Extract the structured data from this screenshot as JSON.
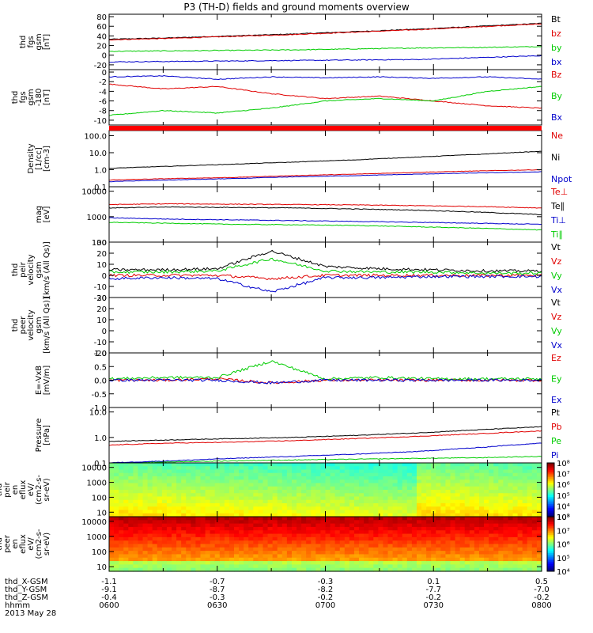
{
  "title": "P3 (TH-D) fields and ground moments overview",
  "colors": {
    "black": "#000000",
    "red": "#e00000",
    "green": "#00cc00",
    "blue": "#0000cc"
  },
  "chart_data": [
    {
      "type": "line",
      "id": "fgs",
      "ytitle": [
        "thd",
        "fgs",
        "gsm",
        "[nT]"
      ],
      "ylim": [
        -30,
        85
      ],
      "yscale": "linear",
      "yticks": [
        [
          "80",
          80
        ],
        [
          "60",
          60
        ],
        [
          "40",
          40
        ],
        [
          "20",
          20
        ],
        [
          "0",
          0
        ],
        [
          "-20",
          -20
        ]
      ],
      "series": [
        {
          "name": "Bt",
          "color": "black",
          "values": [
            33,
            36,
            40,
            44,
            49,
            54,
            60,
            66
          ]
        },
        {
          "name": "bz",
          "color": "red",
          "values": [
            32,
            35,
            39,
            43,
            48,
            53,
            59,
            65
          ]
        },
        {
          "name": "by",
          "color": "green",
          "values": [
            8,
            9,
            10,
            11,
            13,
            15,
            16,
            18
          ]
        },
        {
          "name": "bx",
          "color": "blue",
          "values": [
            -14,
            -13,
            -12,
            -11,
            -10,
            -9,
            -5,
            -1
          ]
        }
      ],
      "legend": [
        "Bt",
        "bz",
        "by",
        "bx"
      ],
      "legend_colors": [
        "black",
        "red",
        "green",
        "blue"
      ]
    },
    {
      "type": "line",
      "id": "fgs-smooth",
      "ytitle": [
        "thd",
        "fgs",
        "gsm",
        "-180",
        "[nT]"
      ],
      "ylim": [
        -11,
        0.5
      ],
      "yscale": "linear",
      "yticks": [
        [
          "0",
          0
        ],
        [
          "-2",
          -2
        ],
        [
          "-4",
          -4
        ],
        [
          "-6",
          -6
        ],
        [
          "-8",
          -8
        ],
        [
          "-10",
          -10
        ]
      ],
      "series": [
        {
          "name": "Bz",
          "color": "red",
          "values": [
            -2.5,
            -3.5,
            -3.0,
            -4.5,
            -5.5,
            -5.0,
            -6.0,
            -7.0,
            -7.5
          ]
        },
        {
          "name": "By",
          "color": "green",
          "values": [
            -9.0,
            -8.0,
            -8.5,
            -7.5,
            -6.0,
            -5.5,
            -6.0,
            -4.0,
            -3.0
          ]
        },
        {
          "name": "Bx",
          "color": "blue",
          "values": [
            -1.0,
            -0.8,
            -1.5,
            -1.0,
            -1.2,
            -1.0,
            -1.3,
            -1.0,
            -1.5
          ]
        }
      ],
      "legend": [
        "Bz",
        "By",
        "Bx"
      ],
      "legend_colors": [
        "red",
        "green",
        "blue"
      ]
    },
    {
      "type": "line",
      "id": "density",
      "ytitle": [
        "Density",
        "[1/cc]",
        "[cm-3]"
      ],
      "ylim": [
        0.1,
        200
      ],
      "yscale": "log",
      "yticks": [
        [
          "100.0",
          100
        ],
        [
          "10.0",
          10
        ],
        [
          "1.0",
          1
        ],
        [
          "0.1",
          0.1
        ]
      ],
      "series": [
        {
          "name": "Ne",
          "color": "red",
          "values": [
            0.25,
            0.3,
            0.35,
            0.45,
            0.55,
            0.7,
            0.85,
            1.0
          ]
        },
        {
          "name": "Ni",
          "color": "black",
          "values": [
            1.2,
            1.6,
            2.1,
            2.8,
            3.8,
            5.5,
            8,
            12
          ]
        },
        {
          "name": "Npot",
          "color": "blue",
          "values": [
            0.2,
            0.25,
            0.3,
            0.38,
            0.45,
            0.55,
            0.65,
            0.75
          ]
        }
      ],
      "legend": [
        "Ne",
        "Ni",
        "Npot"
      ],
      "legend_colors": [
        "red",
        "black",
        "blue"
      ]
    },
    {
      "type": "line",
      "id": "temperature",
      "ytitle": [
        "mag",
        "[eV]"
      ],
      "ylim": [
        100,
        15000
      ],
      "yscale": "log",
      "yticks": [
        [
          "10000",
          10000
        ],
        [
          "1000",
          1000
        ],
        [
          "100",
          100
        ]
      ],
      "series": [
        {
          "name": "Te⊥",
          "color": "red",
          "values": [
            3000,
            3200,
            3100,
            3000,
            2900,
            2700,
            2500,
            2200
          ]
        },
        {
          "name": "Te∥",
          "color": "black",
          "values": [
            2200,
            2400,
            2300,
            2200,
            2000,
            1800,
            1500,
            1200
          ]
        },
        {
          "name": "Ti⊥",
          "color": "blue",
          "values": [
            900,
            800,
            750,
            700,
            650,
            600,
            550,
            500
          ]
        },
        {
          "name": "Ti∥",
          "color": "green",
          "values": [
            600,
            550,
            500,
            480,
            450,
            400,
            350,
            300
          ]
        }
      ],
      "legend": [
        "Te⊥",
        "Te∥",
        "Ti⊥",
        "Ti∥"
      ],
      "legend_colors": [
        "red",
        "black",
        "blue",
        "green"
      ]
    },
    {
      "type": "line",
      "id": "peir-velocity",
      "ytitle": [
        "thd",
        "peir",
        "velocity",
        "gsm",
        "[km/s (All Qs)]"
      ],
      "ylim": [
        -20,
        30
      ],
      "yscale": "linear",
      "yticks": [
        [
          "30",
          30
        ],
        [
          "20",
          20
        ],
        [
          "10",
          10
        ],
        [
          "0",
          0
        ],
        [
          "-10",
          -10
        ],
        [
          "-20",
          -20
        ]
      ],
      "series": [
        {
          "name": "Vt",
          "color": "black",
          "values": [
            5,
            5,
            6,
            22,
            8,
            6,
            5,
            4,
            4
          ]
        },
        {
          "name": "Vz",
          "color": "red",
          "values": [
            0,
            0,
            0,
            -3,
            0,
            0,
            0,
            0,
            0
          ]
        },
        {
          "name": "Vy",
          "color": "green",
          "values": [
            3,
            3,
            4,
            15,
            4,
            3,
            3,
            2,
            2
          ]
        },
        {
          "name": "Vx",
          "color": "blue",
          "values": [
            -3,
            -2,
            -3,
            -15,
            -2,
            -2,
            -1,
            -1,
            -1
          ]
        }
      ],
      "legend": [
        "Vt",
        "Vz",
        "Vy",
        "Vx"
      ],
      "legend_colors": [
        "black",
        "red",
        "green",
        "blue"
      ]
    },
    {
      "type": "line",
      "id": "peer-velocity",
      "ytitle": [
        "thd",
        "peer",
        "velocity",
        "gsm",
        "[km/s (All Qs)]"
      ],
      "ylim": [
        -20,
        30
      ],
      "yscale": "linear",
      "yticks": [
        [
          "30",
          30
        ],
        [
          "20",
          20
        ],
        [
          "10",
          10
        ],
        [
          "0",
          0
        ],
        [
          "-10",
          -10
        ],
        [
          "-20",
          -20
        ]
      ],
      "series": [],
      "legend": [
        "Vt",
        "Vz",
        "Vy",
        "Vx"
      ],
      "legend_colors": [
        "black",
        "red",
        "green",
        "blue"
      ]
    },
    {
      "type": "line",
      "id": "efield",
      "ytitle": [
        "E=-VxB",
        "[mV/m]"
      ],
      "ylim": [
        -1.0,
        1.0
      ],
      "yscale": "linear",
      "yticks": [
        [
          "1.0",
          1.0
        ],
        [
          "0.5",
          0.5
        ],
        [
          "0.0",
          0
        ],
        [
          "-0.5",
          -0.5
        ],
        [
          "-1.0",
          -1.0
        ]
      ],
      "series": [
        {
          "name": "Ez",
          "color": "red",
          "values": [
            0,
            0,
            0.05,
            -0.1,
            0,
            0,
            0,
            0,
            0
          ]
        },
        {
          "name": "Ey",
          "color": "green",
          "values": [
            0.05,
            0.1,
            0.1,
            0.7,
            0.05,
            0.1,
            0.05,
            0.05,
            0.05
          ]
        },
        {
          "name": "Ex",
          "color": "blue",
          "values": [
            0,
            0,
            0,
            -0.1,
            0,
            0,
            0,
            0,
            0
          ]
        }
      ],
      "legend": [
        "Ez",
        "Ey",
        "Ex"
      ],
      "legend_colors": [
        "red",
        "green",
        "blue"
      ]
    },
    {
      "type": "line",
      "id": "pressure",
      "ytitle": [
        "Pressure",
        "[nPa]"
      ],
      "ylim": [
        0.1,
        15
      ],
      "yscale": "log",
      "yticks": [
        [
          "10.0",
          10
        ],
        [
          "1.0",
          1
        ],
        [
          "0.1",
          0.1
        ]
      ],
      "series": [
        {
          "name": "Pt",
          "color": "black",
          "values": [
            0.7,
            0.8,
            0.9,
            1.0,
            1.2,
            1.5,
            2.0,
            2.6
          ]
        },
        {
          "name": "Pb",
          "color": "red",
          "values": [
            0.5,
            0.6,
            0.65,
            0.75,
            0.9,
            1.1,
            1.4,
            1.8
          ]
        },
        {
          "name": "Pe",
          "color": "green",
          "values": [
            0.1,
            0.11,
            0.12,
            0.13,
            0.14,
            0.15,
            0.16,
            0.18
          ]
        },
        {
          "name": "Pi",
          "color": "blue",
          "values": [
            0.1,
            0.12,
            0.15,
            0.18,
            0.22,
            0.28,
            0.4,
            0.6
          ]
        }
      ],
      "legend": [
        "Pt",
        "Pb",
        "Pe",
        "Pi"
      ],
      "legend_colors": [
        "black",
        "red",
        "green",
        "blue"
      ]
    },
    {
      "type": "heatmap",
      "id": "peir-en-eflux",
      "ytitle": [
        "thd",
        "peir",
        "en",
        "eflux",
        "eV/",
        "(cm2-s-",
        "sr-eV)"
      ],
      "ylim": [
        5,
        20000
      ],
      "yscale": "log",
      "yticks": [
        [
          "10000",
          10000
        ],
        [
          "1000",
          1000
        ],
        [
          "100",
          100
        ],
        [
          "10",
          10
        ]
      ],
      "colorbar_labels": [
        "10⁸",
        "10⁷",
        "10⁶",
        "10⁵",
        "10⁴",
        "10³"
      ],
      "colorbar_values": [
        8,
        7,
        6,
        5,
        4,
        3
      ],
      "colorbar_range": [
        3,
        8
      ]
    },
    {
      "type": "heatmap",
      "id": "peer-en-eflux",
      "ytitle": [
        "thd",
        "peer",
        "en",
        "eflux",
        "eV/",
        "(cm2-s-",
        "sr-eV)"
      ],
      "ylim": [
        5,
        20000
      ],
      "yscale": "log",
      "yticks": [
        [
          "10000",
          10000
        ],
        [
          "1000",
          1000
        ],
        [
          "100",
          100
        ],
        [
          "10",
          10
        ]
      ],
      "colorbar_labels": [
        "10⁸",
        "10⁷",
        "10⁶",
        "10⁵",
        "10⁴"
      ],
      "colorbar_values": [
        8,
        7,
        6,
        5,
        4
      ],
      "colorbar_range": [
        4,
        8
      ]
    }
  ],
  "xaxis": {
    "rows": [
      {
        "label": "thd_X-GSM",
        "values": [
          "-1.1",
          "-0.7",
          "-0.3",
          "0.1",
          "0.5"
        ]
      },
      {
        "label": "thd_Y-GSM",
        "values": [
          "-9.1",
          "-8.7",
          "-8.2",
          "-7.7",
          "-7.0"
        ]
      },
      {
        "label": "thd_Z-GSM",
        "values": [
          "-0.4",
          "-0.3",
          "-0.2",
          "-0.2",
          "-0.2"
        ]
      },
      {
        "label": "hhmm",
        "values": [
          "0600",
          "0630",
          "0700",
          "0730",
          "0800"
        ]
      }
    ],
    "date": "2013 May 28"
  }
}
